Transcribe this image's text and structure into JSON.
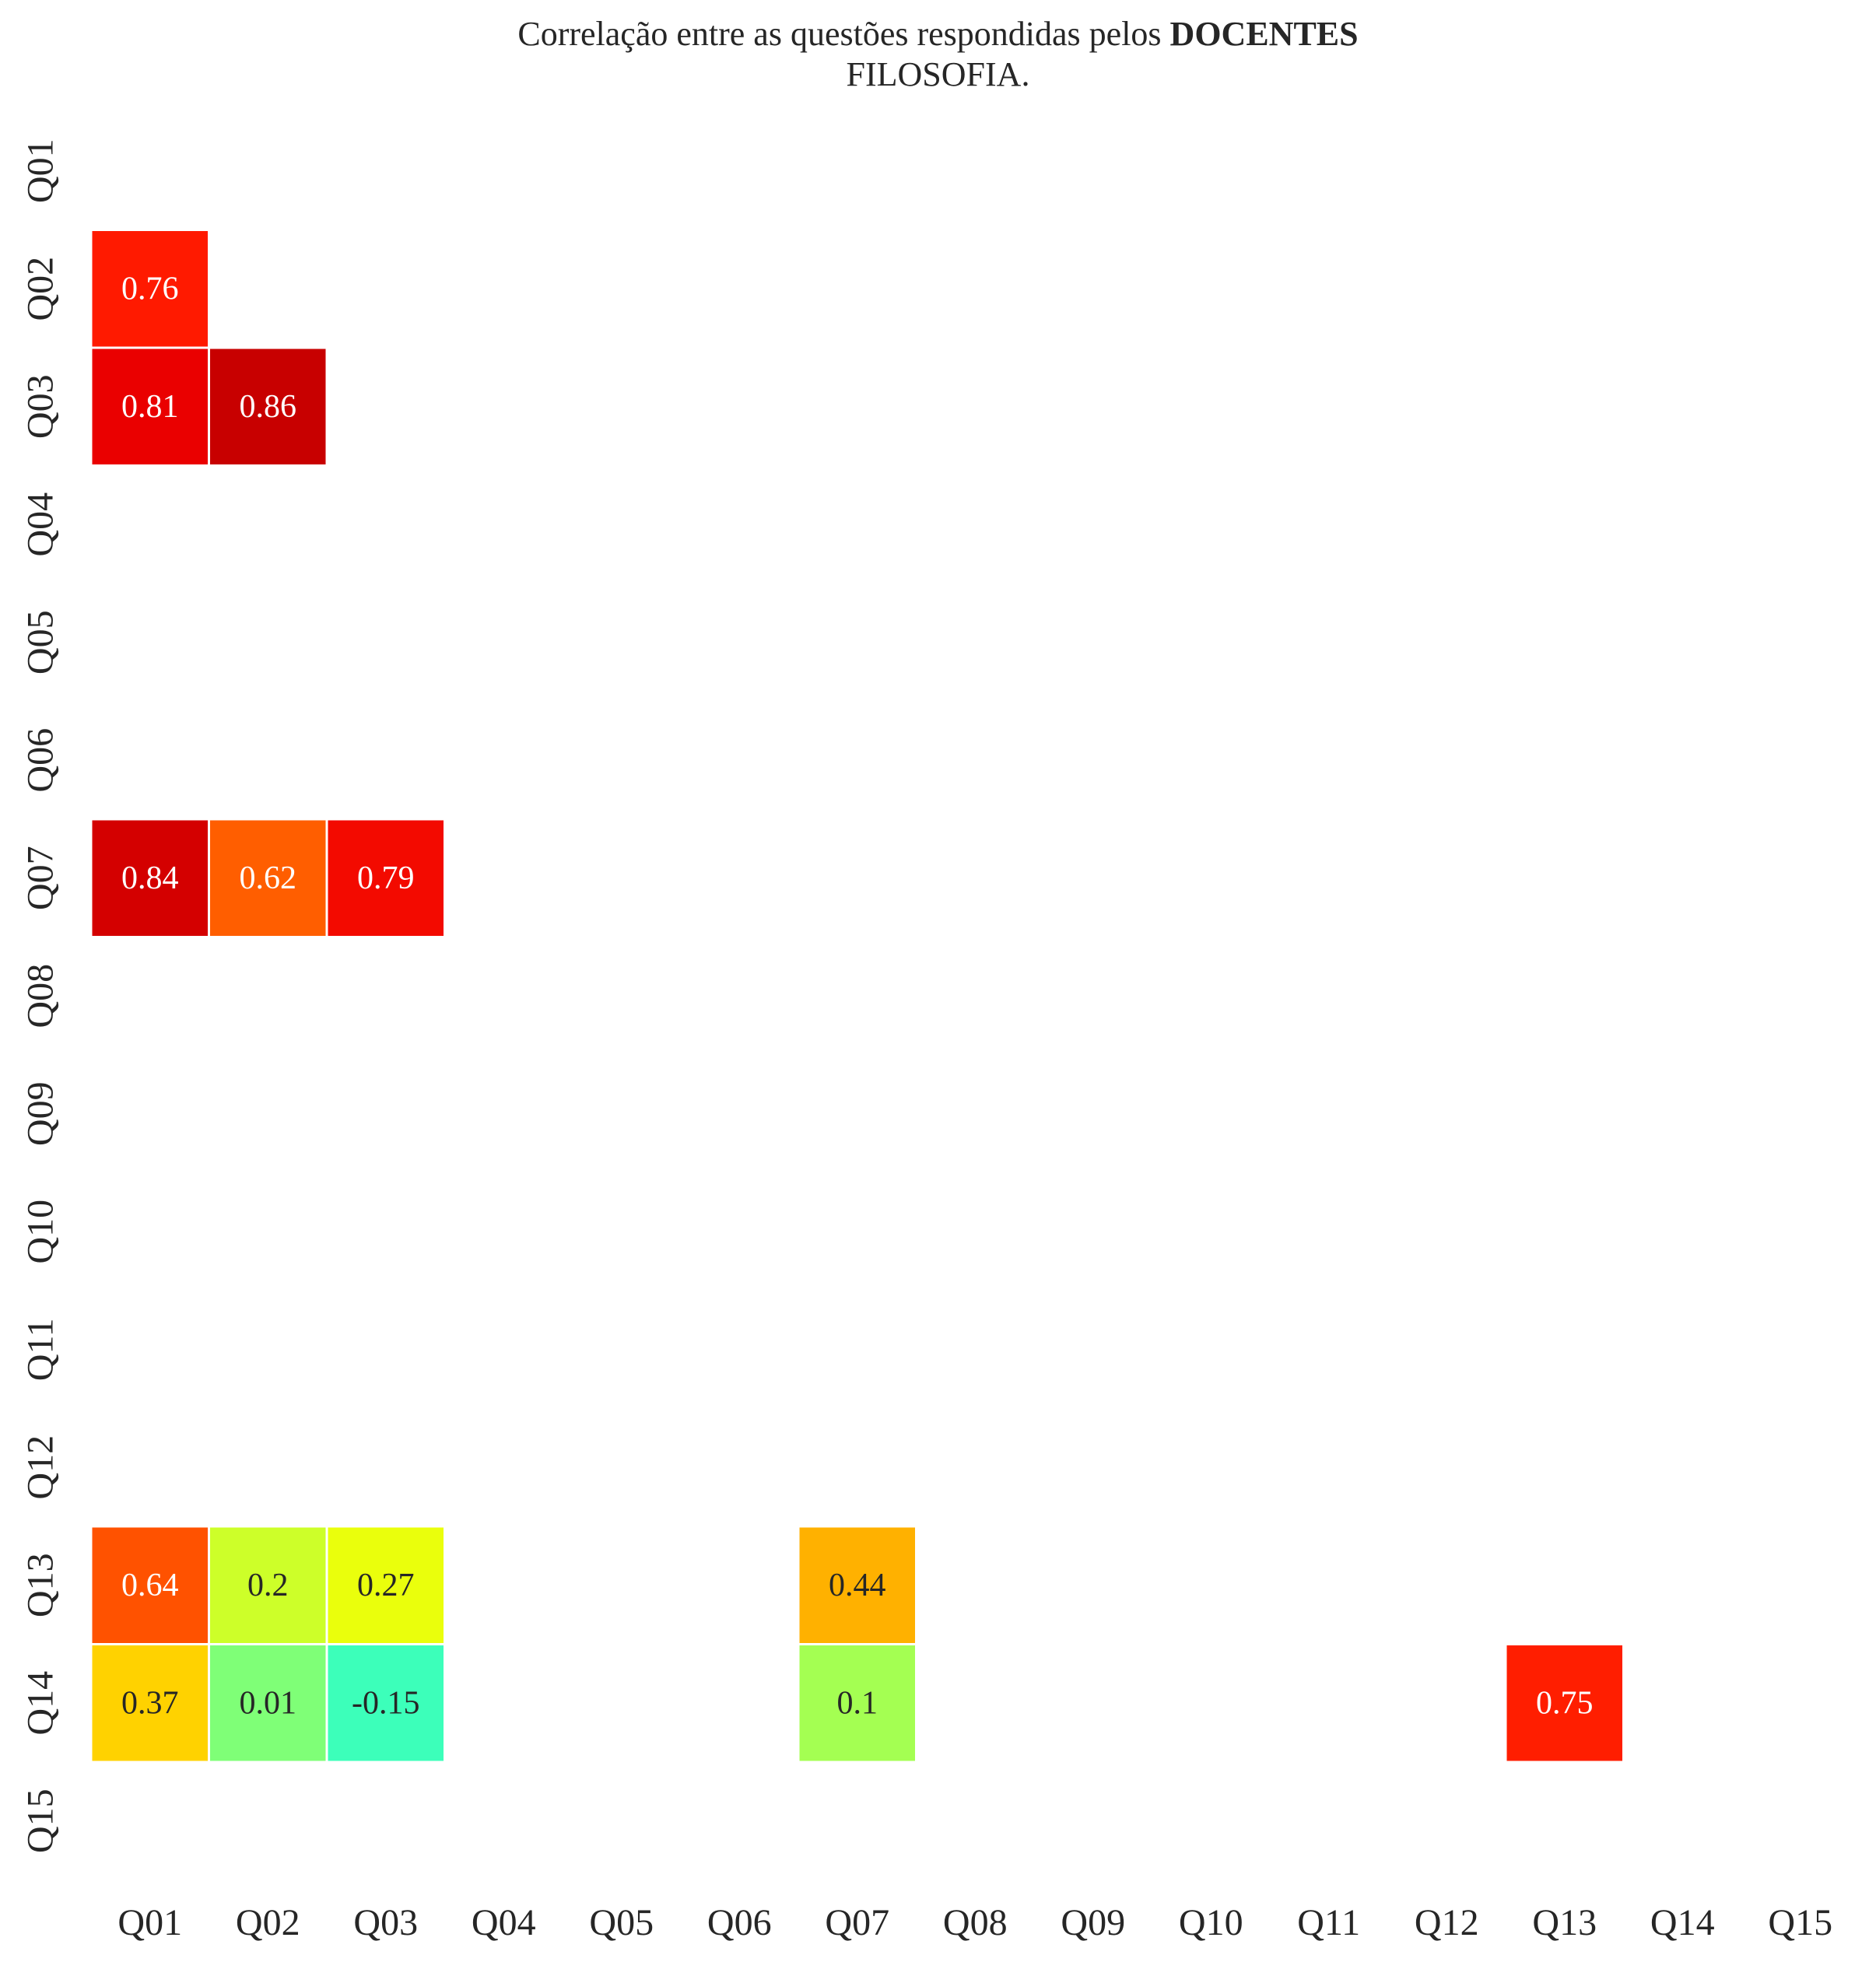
{
  "chart_data": {
    "type": "heatmap",
    "title_parts": [
      {
        "text": "Correlação entre as questões respondidas pelos ",
        "bold": false
      },
      {
        "text": "DOCENTES",
        "bold": true
      }
    ],
    "subtitle": "FILOSOFIA.",
    "x_labels": [
      "Q01",
      "Q02",
      "Q03",
      "Q04",
      "Q05",
      "Q06",
      "Q07",
      "Q08",
      "Q09",
      "Q10",
      "Q11",
      "Q12",
      "Q13",
      "Q14",
      "Q15"
    ],
    "y_labels": [
      "Q01",
      "Q02",
      "Q03",
      "Q04",
      "Q05",
      "Q06",
      "Q07",
      "Q08",
      "Q09",
      "Q10",
      "Q11",
      "Q12",
      "Q13",
      "Q14",
      "Q15"
    ],
    "colormap": "jet",
    "value_range": [
      -1,
      1
    ],
    "masked": "upper triangle and non-significant cells",
    "cells": [
      {
        "row": "Q02",
        "col": "Q01",
        "value": 0.76,
        "label": "0.76",
        "color": "#ff1a00"
      },
      {
        "row": "Q03",
        "col": "Q01",
        "value": 0.81,
        "label": "0.81",
        "color": "#ea0000"
      },
      {
        "row": "Q03",
        "col": "Q02",
        "value": 0.86,
        "label": "0.86",
        "color": "#c80000"
      },
      {
        "row": "Q07",
        "col": "Q01",
        "value": 0.84,
        "label": "0.84",
        "color": "#d40000"
      },
      {
        "row": "Q07",
        "col": "Q02",
        "value": 0.62,
        "label": "0.62",
        "color": "#ff5e00"
      },
      {
        "row": "Q07",
        "col": "Q03",
        "value": 0.79,
        "label": "0.79",
        "color": "#f30a00"
      },
      {
        "row": "Q13",
        "col": "Q01",
        "value": 0.64,
        "label": "0.64",
        "color": "#ff5200"
      },
      {
        "row": "Q13",
        "col": "Q02",
        "value": 0.2,
        "label": "0.2",
        "color": "#cdff29"
      },
      {
        "row": "Q13",
        "col": "Q03",
        "value": 0.27,
        "label": "0.27",
        "color": "#eaff0c"
      },
      {
        "row": "Q13",
        "col": "Q07",
        "value": 0.44,
        "label": "0.44",
        "color": "#ffb100"
      },
      {
        "row": "Q14",
        "col": "Q01",
        "value": 0.37,
        "label": "0.37",
        "color": "#ffd200"
      },
      {
        "row": "Q14",
        "col": "Q02",
        "value": 0.01,
        "label": "0.01",
        "color": "#7fff77"
      },
      {
        "row": "Q14",
        "col": "Q03",
        "value": -0.15,
        "label": "-0.15",
        "color": "#3cffba"
      },
      {
        "row": "Q14",
        "col": "Q07",
        "value": 0.1,
        "label": "0.1",
        "color": "#a4ff52"
      },
      {
        "row": "Q14",
        "col": "Q13",
        "value": 0.75,
        "label": "0.75",
        "color": "#ff1e00"
      }
    ],
    "text_colors": {
      "light": "#ffffff",
      "dark": "#262626"
    },
    "grid": false,
    "legend": "none"
  }
}
